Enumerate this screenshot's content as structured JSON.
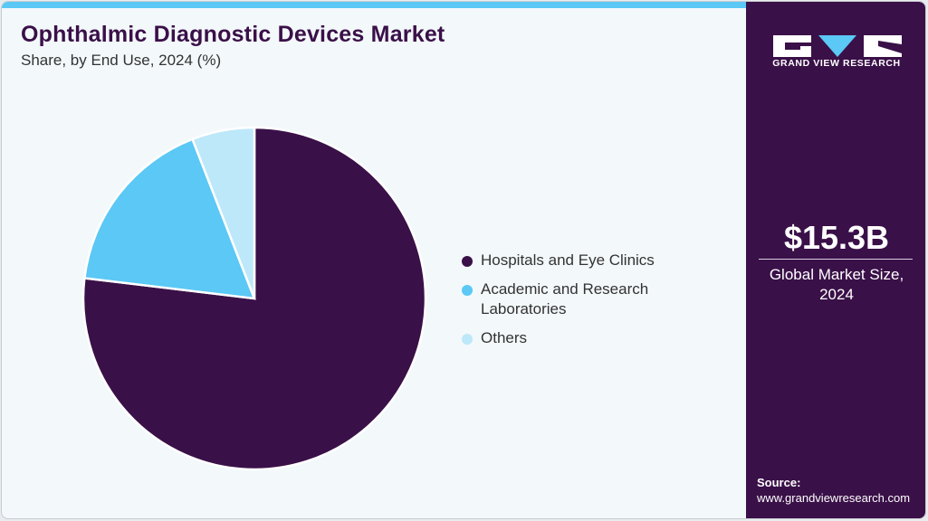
{
  "header": {
    "title": "Ophthalmic Diagnostic Devices Market",
    "subtitle": "Share, by End Use, 2024 (%)"
  },
  "legend": [
    {
      "label": "Hospitals and Eye Clinics",
      "color": "#3a1048"
    },
    {
      "label": "Academic and Research Laboratories",
      "color": "#5bc8f5"
    },
    {
      "label": "Others",
      "color": "#bde8f9"
    }
  ],
  "sidebar": {
    "logo_text": "GRAND VIEW RESEARCH",
    "market_size": "$15.3B",
    "market_caption": "Global Market Size, 2024",
    "source_label": "Source:",
    "source_url": "www.grandviewresearch.com"
  },
  "colors": {
    "accent": "#5bc8f5",
    "brand": "#3a1048",
    "background": "#f3f8fb"
  },
  "chart_data": {
    "type": "pie",
    "title": "Ophthalmic Diagnostic Devices Market",
    "subtitle": "Share, by End Use, 2024 (%)",
    "categories": [
      "Hospitals and Eye Clinics",
      "Academic and Research Laboratories",
      "Others"
    ],
    "values": [
      76.9,
      17.2,
      5.9
    ],
    "colors": [
      "#3a1048",
      "#5bc8f5",
      "#bde8f9"
    ],
    "legend_position": "right",
    "start_angle": "12 o'clock, slices ordered clockwise: Hospitals, then counterclockwise Others/Academic"
  }
}
